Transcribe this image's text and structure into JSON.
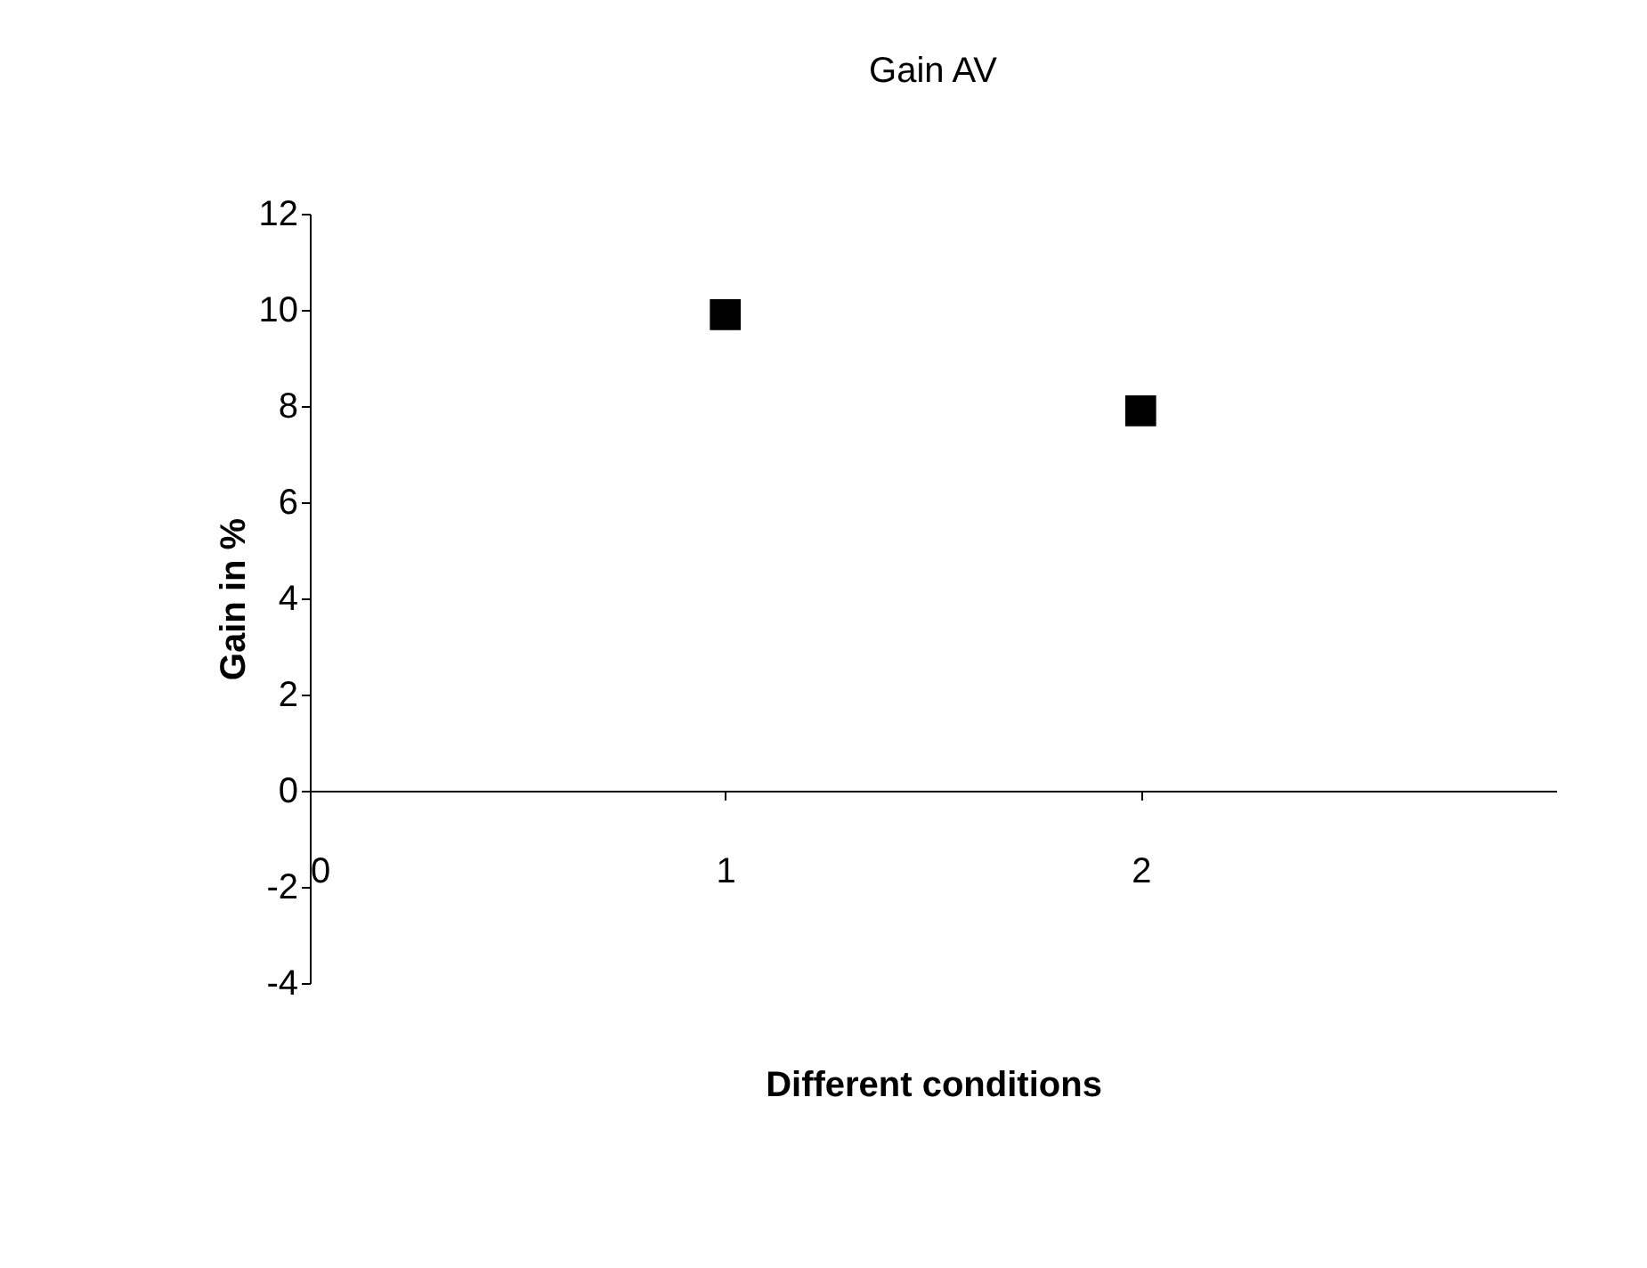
{
  "chart_data": {
    "type": "scatter",
    "title": "Gain AV",
    "xlabel": "Different conditions",
    "ylabel": "Gain in %",
    "x": [
      1,
      2
    ],
    "series": [
      {
        "color": "#000000",
        "values": [
          9.9,
          7.9
        ]
      }
    ],
    "xlim": [
      0,
      3
    ],
    "xticks": [
      0,
      1,
      2
    ],
    "ylim": [
      -4,
      12
    ],
    "yticks": [
      -4,
      -2,
      0,
      2,
      4,
      6,
      8,
      10,
      12
    ],
    "marker": "square",
    "grid": false,
    "legend": false
  }
}
